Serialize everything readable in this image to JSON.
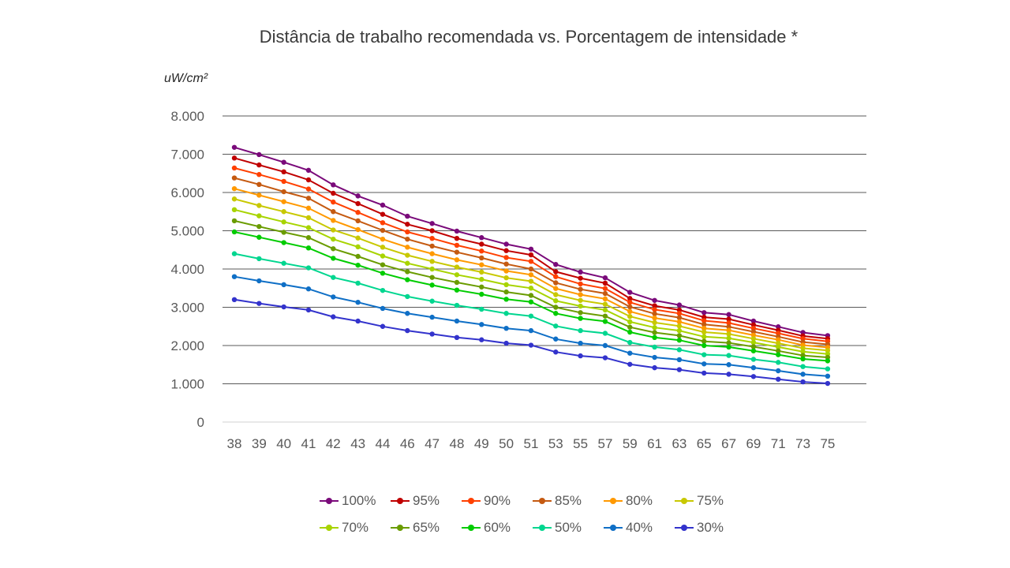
{
  "chart_data": {
    "type": "line",
    "title": "Distância de trabalho recomendada vs. Porcentagem de intensidade *",
    "ylabel": "uW/cm²",
    "xlabel": "",
    "categories": [
      "38",
      "39",
      "40",
      "41",
      "42",
      "43",
      "44",
      "46",
      "47",
      "48",
      "49",
      "50",
      "51",
      "53",
      "55",
      "57",
      "59",
      "61",
      "63",
      "65",
      "67",
      "69",
      "71",
      "73",
      "75"
    ],
    "ylim": [
      0,
      8000
    ],
    "yticks": [
      0,
      1000,
      2000,
      3000,
      4000,
      5000,
      6000,
      7000,
      8000
    ],
    "ytick_labels": [
      "0",
      "1.000",
      "2.000",
      "3.000",
      "4.000",
      "5.000",
      "6.000",
      "7.000",
      "8.000"
    ],
    "grid": true,
    "legend_position": "bottom",
    "series": [
      {
        "name": "100%",
        "color": "#7a0a7a",
        "values": [
          7180,
          6990,
          6790,
          6580,
          6200,
          5910,
          5670,
          5380,
          5190,
          4990,
          4820,
          4650,
          4520,
          4120,
          3920,
          3770,
          3390,
          3180,
          3060,
          2860,
          2810,
          2640,
          2490,
          2340,
          2260
        ]
      },
      {
        "name": "95%",
        "color": "#c00000",
        "values": [
          6900,
          6720,
          6540,
          6330,
          5980,
          5710,
          5430,
          5170,
          5000,
          4800,
          4650,
          4480,
          4370,
          3930,
          3760,
          3630,
          3230,
          3040,
          2930,
          2740,
          2690,
          2540,
          2400,
          2250,
          2180
        ]
      },
      {
        "name": "90%",
        "color": "#ff4000",
        "values": [
          6640,
          6470,
          6290,
          6090,
          5750,
          5480,
          5210,
          4970,
          4800,
          4620,
          4470,
          4300,
          4200,
          3800,
          3610,
          3490,
          3130,
          2940,
          2840,
          2650,
          2590,
          2450,
          2320,
          2180,
          2110
        ]
      },
      {
        "name": "85%",
        "color": "#c55a11",
        "values": [
          6380,
          6210,
          6020,
          5850,
          5500,
          5260,
          5010,
          4780,
          4600,
          4440,
          4290,
          4130,
          4000,
          3640,
          3470,
          3360,
          3010,
          2830,
          2730,
          2550,
          2490,
          2360,
          2230,
          2090,
          2030
        ]
      },
      {
        "name": "80%",
        "color": "#ff9900",
        "values": [
          6100,
          5930,
          5760,
          5590,
          5270,
          5030,
          4780,
          4570,
          4400,
          4240,
          4110,
          3950,
          3850,
          3490,
          3330,
          3220,
          2890,
          2720,
          2620,
          2450,
          2400,
          2270,
          2150,
          2010,
          1950
        ]
      },
      {
        "name": "75%",
        "color": "#c8c800",
        "values": [
          5830,
          5660,
          5500,
          5340,
          5020,
          4810,
          4570,
          4360,
          4200,
          4050,
          3920,
          3770,
          3680,
          3330,
          3180,
          3080,
          2760,
          2600,
          2510,
          2350,
          2300,
          2180,
          2060,
          1930,
          1870
        ]
      },
      {
        "name": "70%",
        "color": "#a8d400",
        "values": [
          5550,
          5390,
          5230,
          5080,
          4780,
          4580,
          4340,
          4150,
          4000,
          3850,
          3730,
          3590,
          3500,
          3170,
          3030,
          2930,
          2620,
          2470,
          2390,
          2230,
          2190,
          2080,
          1960,
          1840,
          1780
        ]
      },
      {
        "name": "65%",
        "color": "#6a9c00",
        "values": [
          5260,
          5110,
          4960,
          4820,
          4530,
          4330,
          4110,
          3930,
          3780,
          3650,
          3530,
          3400,
          3310,
          3000,
          2860,
          2770,
          2480,
          2340,
          2260,
          2110,
          2070,
          1970,
          1860,
          1740,
          1690
        ]
      },
      {
        "name": "60%",
        "color": "#00cc00",
        "values": [
          4970,
          4830,
          4690,
          4550,
          4280,
          4100,
          3890,
          3720,
          3580,
          3450,
          3340,
          3210,
          3140,
          2840,
          2710,
          2630,
          2350,
          2210,
          2140,
          2000,
          1960,
          1860,
          1760,
          1650,
          1600
        ]
      },
      {
        "name": "50%",
        "color": "#00d68f",
        "values": [
          4400,
          4270,
          4150,
          4030,
          3780,
          3630,
          3440,
          3280,
          3160,
          3050,
          2950,
          2840,
          2770,
          2510,
          2390,
          2320,
          2080,
          1960,
          1890,
          1760,
          1740,
          1640,
          1560,
          1450,
          1390
        ]
      },
      {
        "name": "40%",
        "color": "#0f6fc6",
        "values": [
          3800,
          3690,
          3590,
          3480,
          3270,
          3130,
          2970,
          2840,
          2740,
          2640,
          2550,
          2450,
          2390,
          2170,
          2060,
          2000,
          1800,
          1690,
          1630,
          1520,
          1500,
          1420,
          1340,
          1250,
          1200
        ]
      },
      {
        "name": "30%",
        "color": "#3333cc",
        "values": [
          3200,
          3100,
          3010,
          2930,
          2750,
          2640,
          2500,
          2390,
          2300,
          2210,
          2150,
          2060,
          2010,
          1830,
          1730,
          1680,
          1510,
          1420,
          1370,
          1280,
          1250,
          1190,
          1120,
          1050,
          1010
        ]
      }
    ]
  }
}
